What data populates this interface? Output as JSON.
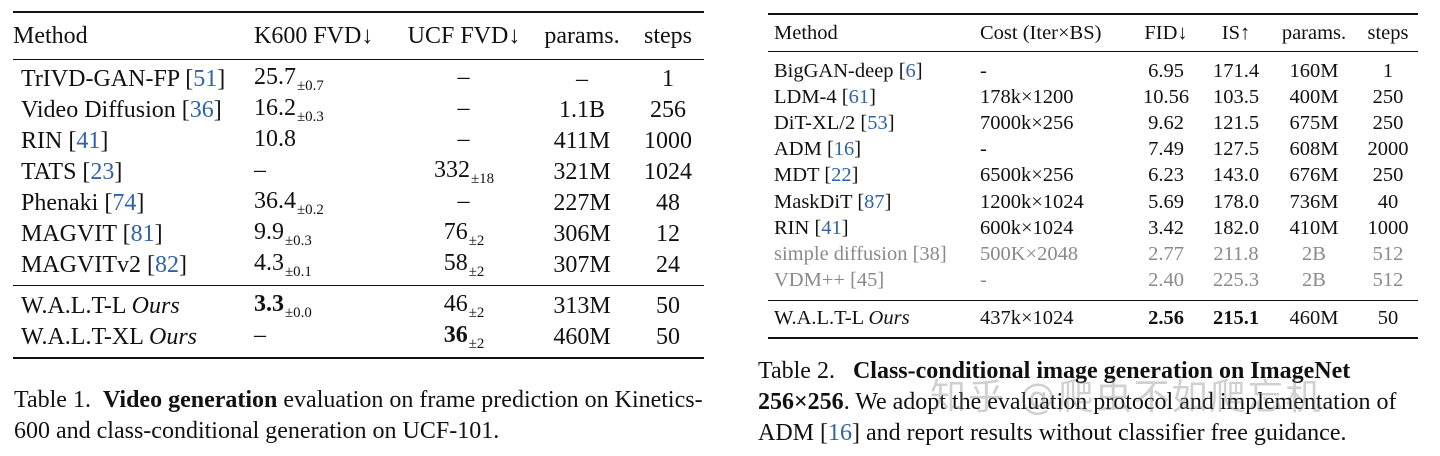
{
  "table1": {
    "headers": [
      "Method",
      "K600 FVD↓",
      "UCF FVD↓",
      "params.",
      "steps"
    ],
    "rows": [
      {
        "method": "TrIVD-GAN-FP",
        "cite": "51",
        "k600": "25.7",
        "k600_pm": "±0.7",
        "ucf": "–",
        "ucf_pm": "",
        "params": "–",
        "steps": "1"
      },
      {
        "method": "Video Diffusion",
        "cite": "36",
        "k600": "16.2",
        "k600_pm": "±0.3",
        "ucf": "–",
        "ucf_pm": "",
        "params": "1.1B",
        "steps": "256"
      },
      {
        "method": "RIN",
        "cite": "41",
        "k600": "10.8",
        "k600_pm": "",
        "ucf": "–",
        "ucf_pm": "",
        "params": "411M",
        "steps": "1000"
      },
      {
        "method": "TATS",
        "cite": "23",
        "k600": "–",
        "k600_pm": "",
        "ucf": "332",
        "ucf_pm": "±18",
        "params": "321M",
        "steps": "1024"
      },
      {
        "method": "Phenaki",
        "cite": "74",
        "k600": "36.4",
        "k600_pm": "±0.2",
        "ucf": "–",
        "ucf_pm": "",
        "params": "227M",
        "steps": "48"
      },
      {
        "method": "MAGVIT",
        "cite": "81",
        "k600": "9.9",
        "k600_pm": "±0.3",
        "ucf": "76",
        "ucf_pm": "±2",
        "params": "306M",
        "steps": "12"
      },
      {
        "method": "MAGVITv2",
        "cite": "82",
        "k600": "4.3",
        "k600_pm": "±0.1",
        "ucf": "58",
        "ucf_pm": "±2",
        "params": "307M",
        "steps": "24"
      }
    ],
    "ours": [
      {
        "method": "W.A.L.T-L",
        "tag": "Ours",
        "k600": "3.3",
        "k600_pm": "±0.0",
        "ucf": "46",
        "ucf_pm": "±2",
        "params": "313M",
        "steps": "50"
      },
      {
        "method": "W.A.L.T-XL",
        "tag": "Ours",
        "k600": "–",
        "k600_pm": "",
        "ucf": "36",
        "ucf_pm": "±2",
        "params": "460M",
        "steps": "50"
      }
    ]
  },
  "table2": {
    "headers": [
      "Method",
      "Cost (Iter×BS)",
      "FID↓",
      "IS↑",
      "params.",
      "steps"
    ],
    "rows": [
      {
        "method": "BigGAN-deep",
        "cite": "6",
        "cost": "-",
        "fid": "6.95",
        "is": "171.4",
        "params": "160M",
        "steps": "1"
      },
      {
        "method": "LDM-4",
        "cite": "61",
        "cost": "178k×1200",
        "fid": "10.56",
        "is": "103.5",
        "params": "400M",
        "steps": "250"
      },
      {
        "method": "DiT-XL/2",
        "cite": "53",
        "cost": "7000k×256",
        "fid": "9.62",
        "is": "121.5",
        "params": "675M",
        "steps": "250"
      },
      {
        "method": "ADM",
        "cite": "16",
        "cost": "-",
        "fid": "7.49",
        "is": "127.5",
        "params": "608M",
        "steps": "2000"
      },
      {
        "method": "MDT",
        "cite": "22",
        "cost": "6500k×256",
        "fid": "6.23",
        "is": "143.0",
        "params": "676M",
        "steps": "250"
      },
      {
        "method": "MaskDiT",
        "cite": "87",
        "cost": "1200k×1024",
        "fid": "5.69",
        "is": "178.0",
        "params": "736M",
        "steps": "40"
      },
      {
        "method": "RIN",
        "cite": "41",
        "cost": "600k×1024",
        "fid": "3.42",
        "is": "182.0",
        "params": "410M",
        "steps": "1000"
      },
      {
        "method": "simple diffusion",
        "cite": "38",
        "cost": "500K×2048",
        "fid": "2.77",
        "is": "211.8",
        "params": "2B",
        "steps": "512",
        "gray": true
      },
      {
        "method": "VDM++",
        "cite": "45",
        "cost": "-",
        "fid": "2.40",
        "is": "225.3",
        "params": "2B",
        "steps": "512",
        "gray": true
      }
    ],
    "ours": {
      "method": "W.A.L.T-L",
      "tag": "Ours",
      "cost": "437k×1024",
      "fid": "2.56",
      "is": "215.1",
      "params": "460M",
      "steps": "50"
    }
  },
  "caption1": {
    "label": "Table 1.",
    "bold": "Video generation",
    "text": " evaluation on frame prediction on Kinetics-600 and class-conditional generation on UCF-101."
  },
  "caption2": {
    "label": "Table 2.",
    "bold": "Class-conditional image generation on ImageNet 256×256",
    "text_a": ". We adopt the evaluation protocol and implementation of ADM [",
    "cite": "16",
    "text_b": "] and report results without classifier free guidance."
  },
  "watermark": "知乎 @爬虫不如爬忘机"
}
